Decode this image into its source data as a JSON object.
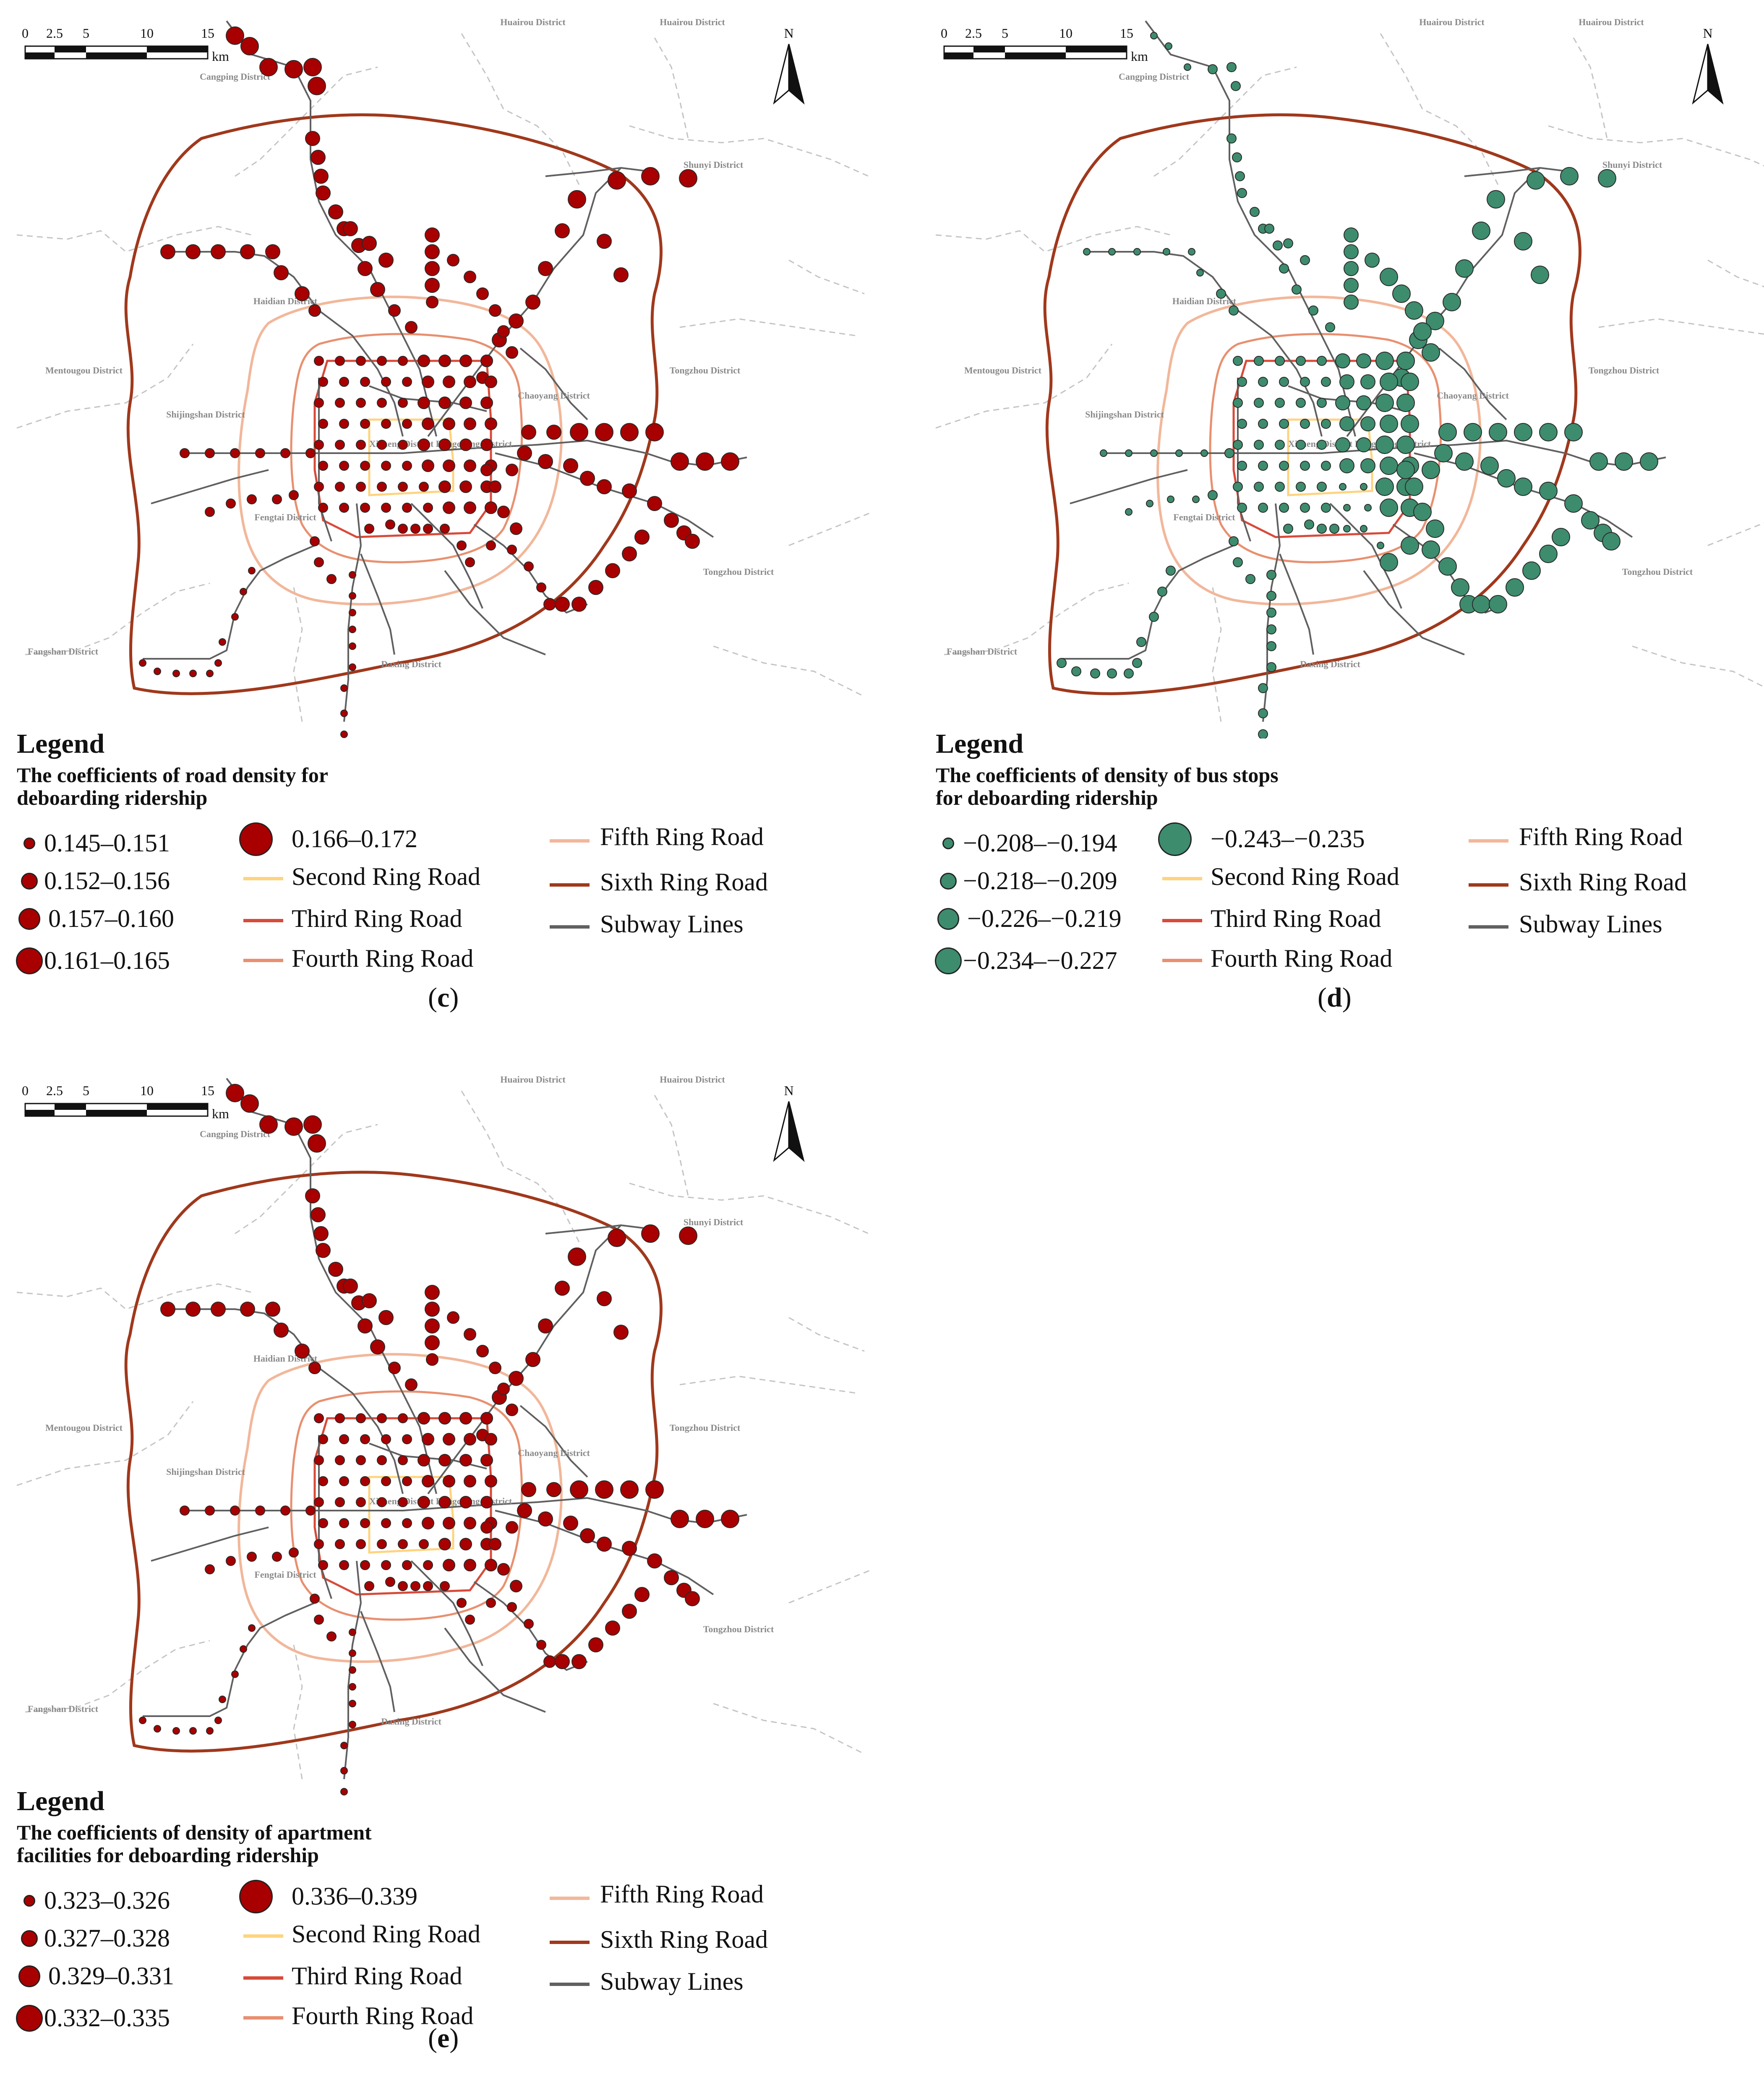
{
  "districts": [
    "Huairou District",
    "Huairou District",
    "Cangping District",
    "Shunyi District",
    "Haidian District",
    "Mentougou District",
    "Tongzhou District",
    "Chaoyang District",
    "Shijingshan District",
    "Xicheng District Dongcheng District",
    "Fengtai District",
    "Tongzhou District",
    "Fangshan District",
    "Daxing District"
  ],
  "scale": {
    "ticks": [
      "0",
      "2.5",
      "5",
      "10",
      "15"
    ],
    "unit": "km"
  },
  "north": "N",
  "colors": {
    "red": "#a80000",
    "green": "#3d8c6e",
    "second": "#ffd37f",
    "third": "#d84a3a",
    "fourth": "#e89070",
    "fifth": "#f2b79a",
    "sixth": "#a0381c",
    "subway": "#606060"
  },
  "ring_labels": {
    "second": "Second Ring Road",
    "third": "Third Ring Road",
    "fourth": "Fourth Ring Road",
    "fifth": "Fifth Ring Road",
    "sixth": "Sixth Ring Road",
    "subway": "Subway Lines"
  },
  "legend_title": "Legend",
  "panels": [
    {
      "id": "c",
      "label": "c",
      "color": "red",
      "subtitle": [
        "The coefficients of road density for",
        "deboarding ridership"
      ],
      "classes": [
        "0.145–0.151",
        "0.152–0.156",
        "0.157–0.160",
        "0.161–0.165",
        "0.166–0.172"
      ]
    },
    {
      "id": "d",
      "label": "d",
      "color": "green",
      "subtitle": [
        "The coefficients of density of bus stops",
        "for deboarding ridership"
      ],
      "classes": [
        "−0.208–−0.194",
        "−0.218–−0.209",
        "−0.226–−0.219",
        "−0.234–−0.227",
        "−0.243–−0.235"
      ]
    },
    {
      "id": "e",
      "label": "e",
      "color": "red",
      "subtitle": [
        "The coefficients of density of apartment",
        "facilities for deboarding ridership"
      ],
      "classes": [
        "0.323–0.326",
        "0.327–0.328",
        "0.329–0.331",
        "0.332–0.335",
        "0.336–0.339"
      ]
    }
  ]
}
